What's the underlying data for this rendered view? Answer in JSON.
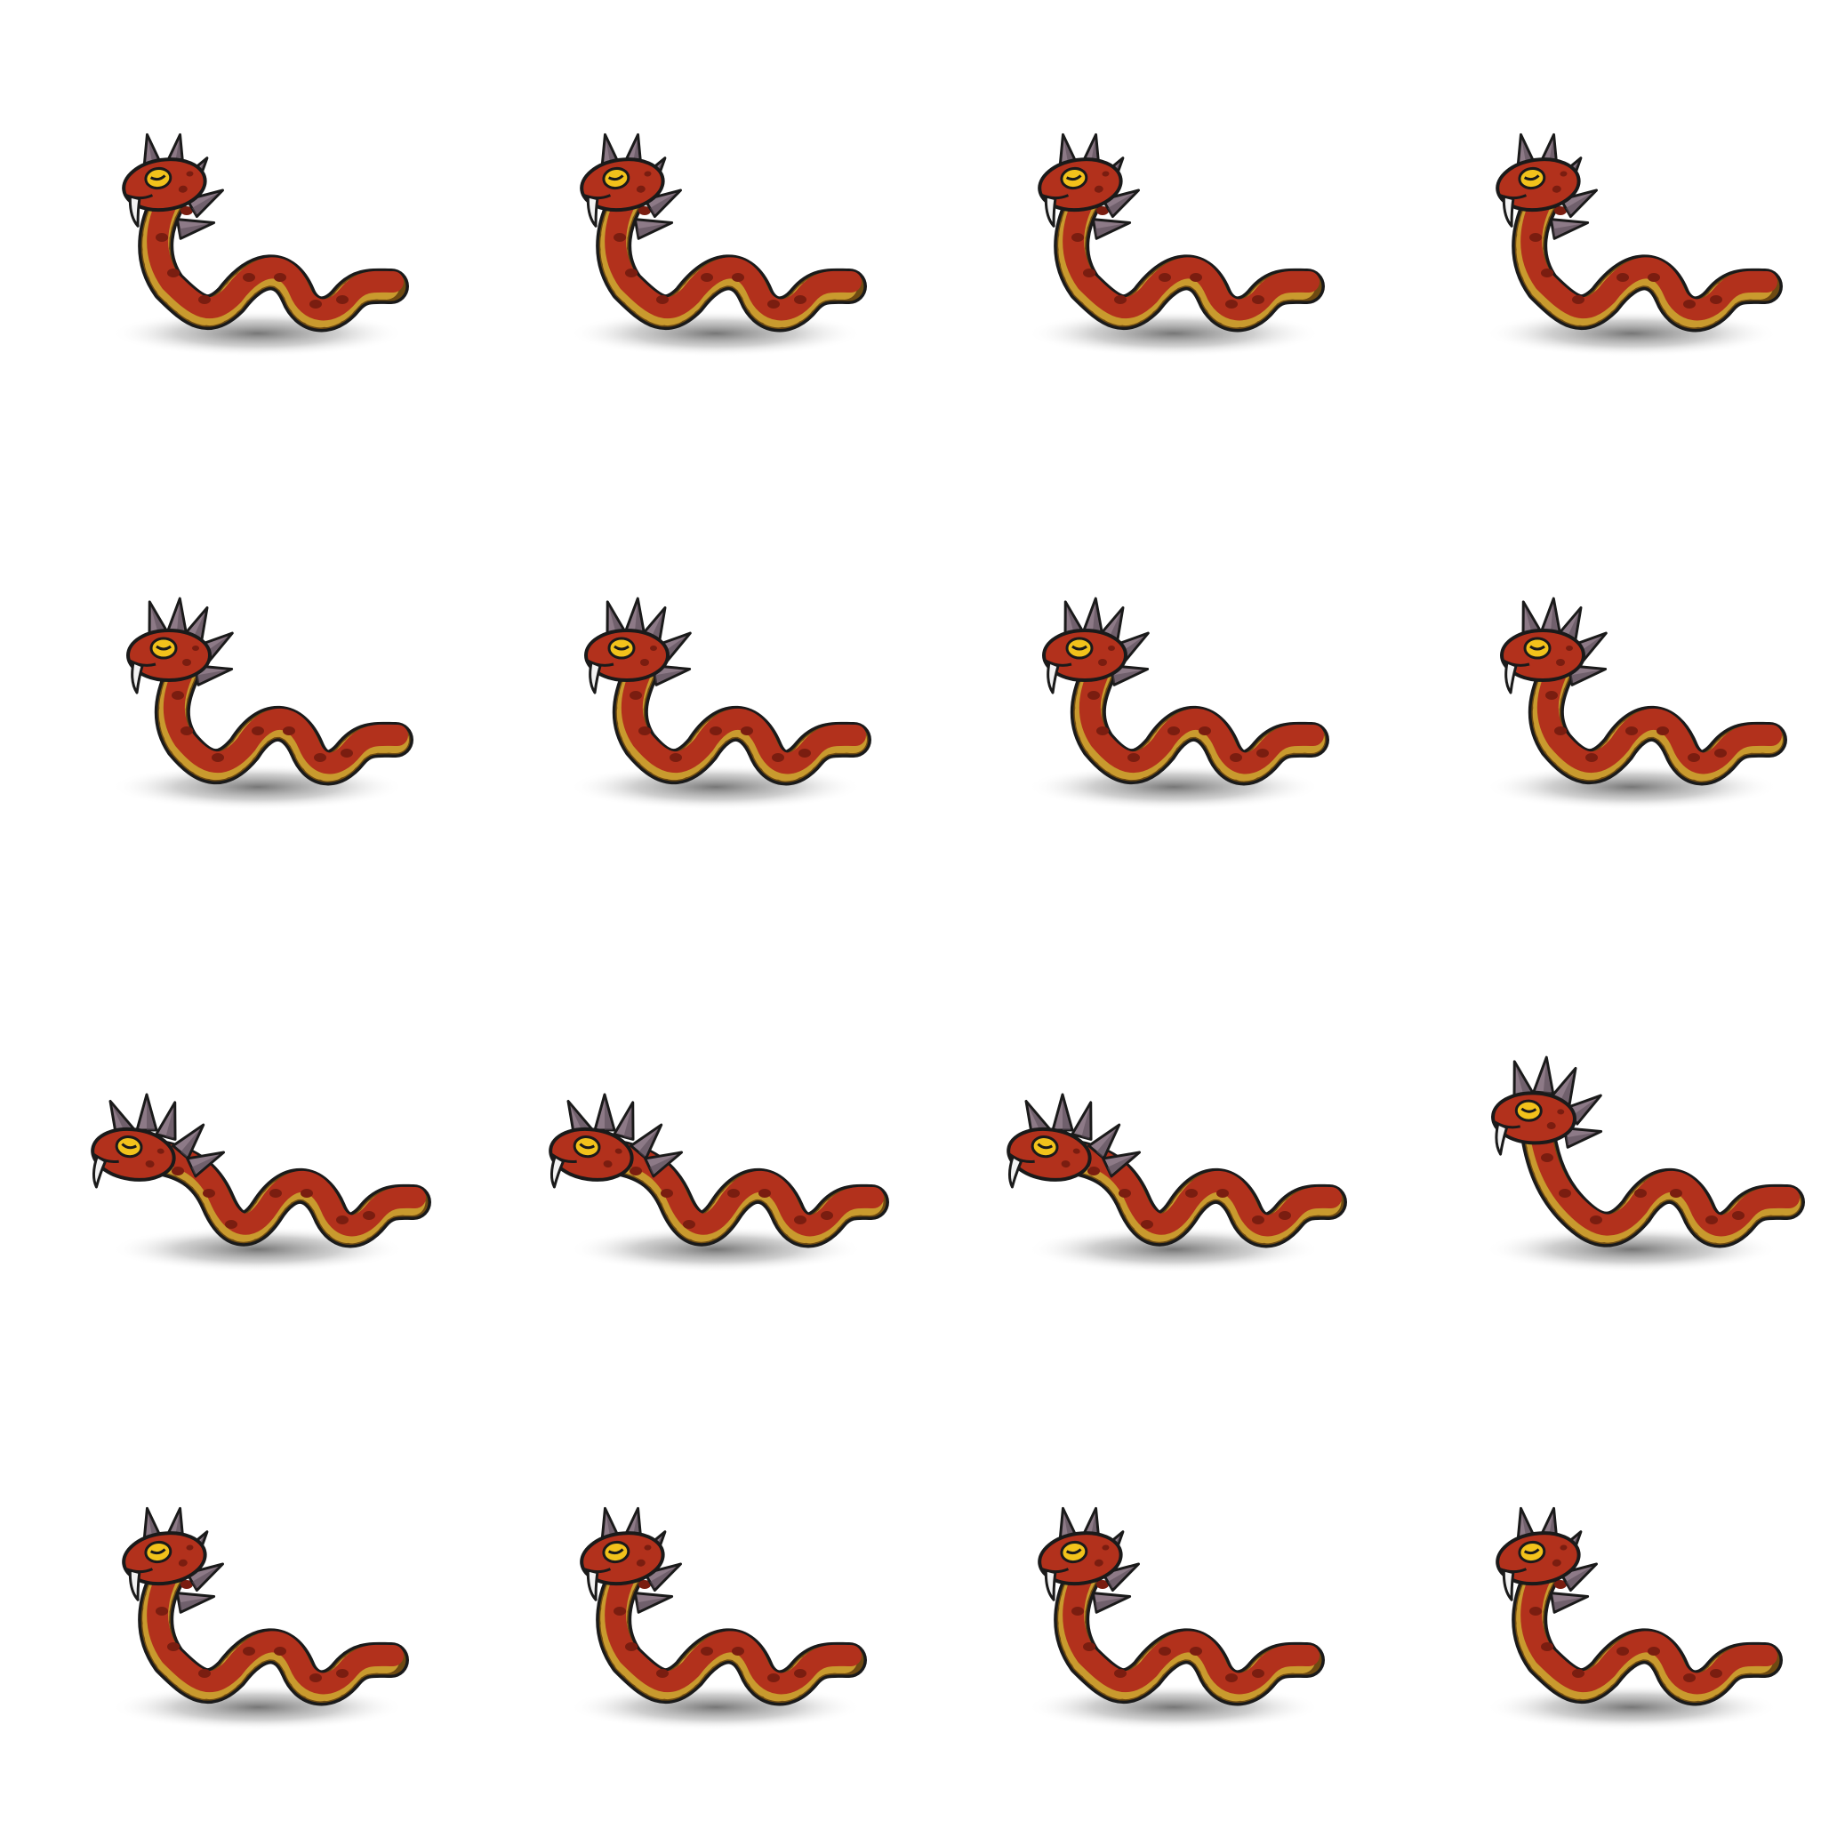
{
  "sprite_sheet": {
    "subject": "spiked-red-snake",
    "rows": 4,
    "columns": 4,
    "frame_count": 16,
    "colors": {
      "background": "#ffffff",
      "body": "#b2311c",
      "body_spots": "#7a1d10",
      "belly_stripe": "#c99a2e",
      "belly_band": "#6e4a12",
      "eye": "#f2c21b",
      "spike": "#8d7a87",
      "spike_shade": "#5a4a55",
      "fang": "#f2f2f2",
      "outline": "#1a1a1a",
      "shadow": "#9a9a9a"
    },
    "frames": [
      {
        "row": 1,
        "col": 1,
        "pose": "coiled-up"
      },
      {
        "row": 1,
        "col": 2,
        "pose": "coiled-up"
      },
      {
        "row": 1,
        "col": 3,
        "pose": "coiled-up"
      },
      {
        "row": 1,
        "col": 4,
        "pose": "coiled-up"
      },
      {
        "row": 2,
        "col": 1,
        "pose": "lowering"
      },
      {
        "row": 2,
        "col": 2,
        "pose": "lowering"
      },
      {
        "row": 2,
        "col": 3,
        "pose": "lowering"
      },
      {
        "row": 2,
        "col": 4,
        "pose": "lowering"
      },
      {
        "row": 3,
        "col": 1,
        "pose": "lunge"
      },
      {
        "row": 3,
        "col": 2,
        "pose": "lunge"
      },
      {
        "row": 3,
        "col": 3,
        "pose": "lunge"
      },
      {
        "row": 3,
        "col": 4,
        "pose": "recover"
      },
      {
        "row": 4,
        "col": 1,
        "pose": "coiled-up"
      },
      {
        "row": 4,
        "col": 2,
        "pose": "coiled-up"
      },
      {
        "row": 4,
        "col": 3,
        "pose": "coiled-up"
      },
      {
        "row": 4,
        "col": 4,
        "pose": "coiled-up"
      }
    ]
  }
}
